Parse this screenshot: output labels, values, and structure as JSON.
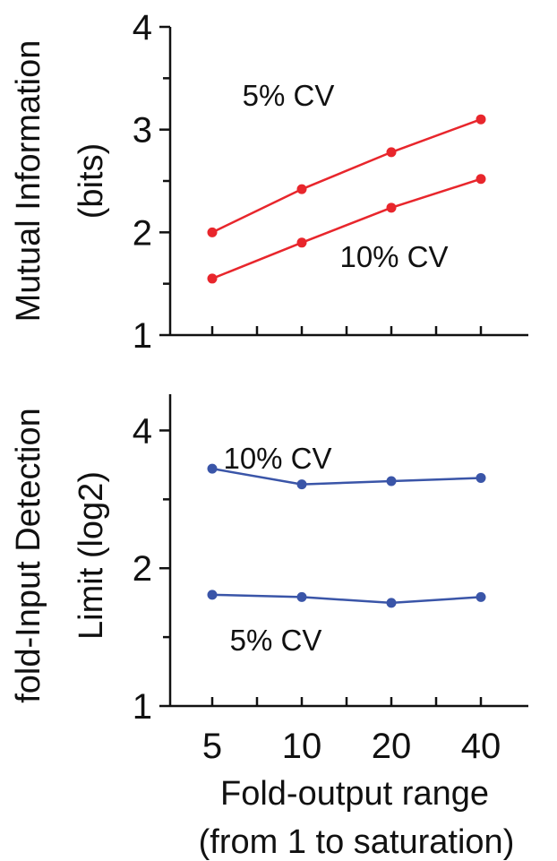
{
  "chart_data": [
    {
      "type": "line",
      "x": [
        5,
        10,
        20,
        40
      ],
      "x_scale": "log",
      "ylim": [
        1,
        4
      ],
      "yticks": [
        1,
        2,
        3,
        4
      ],
      "ylabel": [
        "Mutual Information",
        "(bits)"
      ],
      "color": "#e8262c",
      "series": [
        {
          "name": "5% CV",
          "values": [
            2.0,
            2.42,
            2.78,
            3.1
          ]
        },
        {
          "name": "10% CV",
          "values": [
            1.55,
            1.9,
            2.24,
            2.52
          ]
        }
      ],
      "annotations": [
        "5% CV",
        "10% CV"
      ]
    },
    {
      "type": "line",
      "x": [
        5,
        10,
        20,
        40
      ],
      "x_scale": "log",
      "y_scale": "log2",
      "ylim": [
        1,
        4.8
      ],
      "yticks": [
        1,
        2,
        4
      ],
      "ylabel": [
        "fold-Input Detection",
        "Limit (log2)"
      ],
      "color": "#3a55a8",
      "series": [
        {
          "name": "10% CV",
          "values": [
            3.3,
            3.05,
            3.1,
            3.15
          ]
        },
        {
          "name": "5% CV",
          "values": [
            1.75,
            1.73,
            1.68,
            1.73
          ]
        }
      ],
      "annotations": [
        "10% CV",
        "5% CV"
      ]
    }
  ],
  "x_axis": {
    "tick_labels": [
      "5",
      "10",
      "20",
      "40"
    ],
    "label_line1": "Fold-output range",
    "label_line2": "(from 1 to saturation)"
  }
}
